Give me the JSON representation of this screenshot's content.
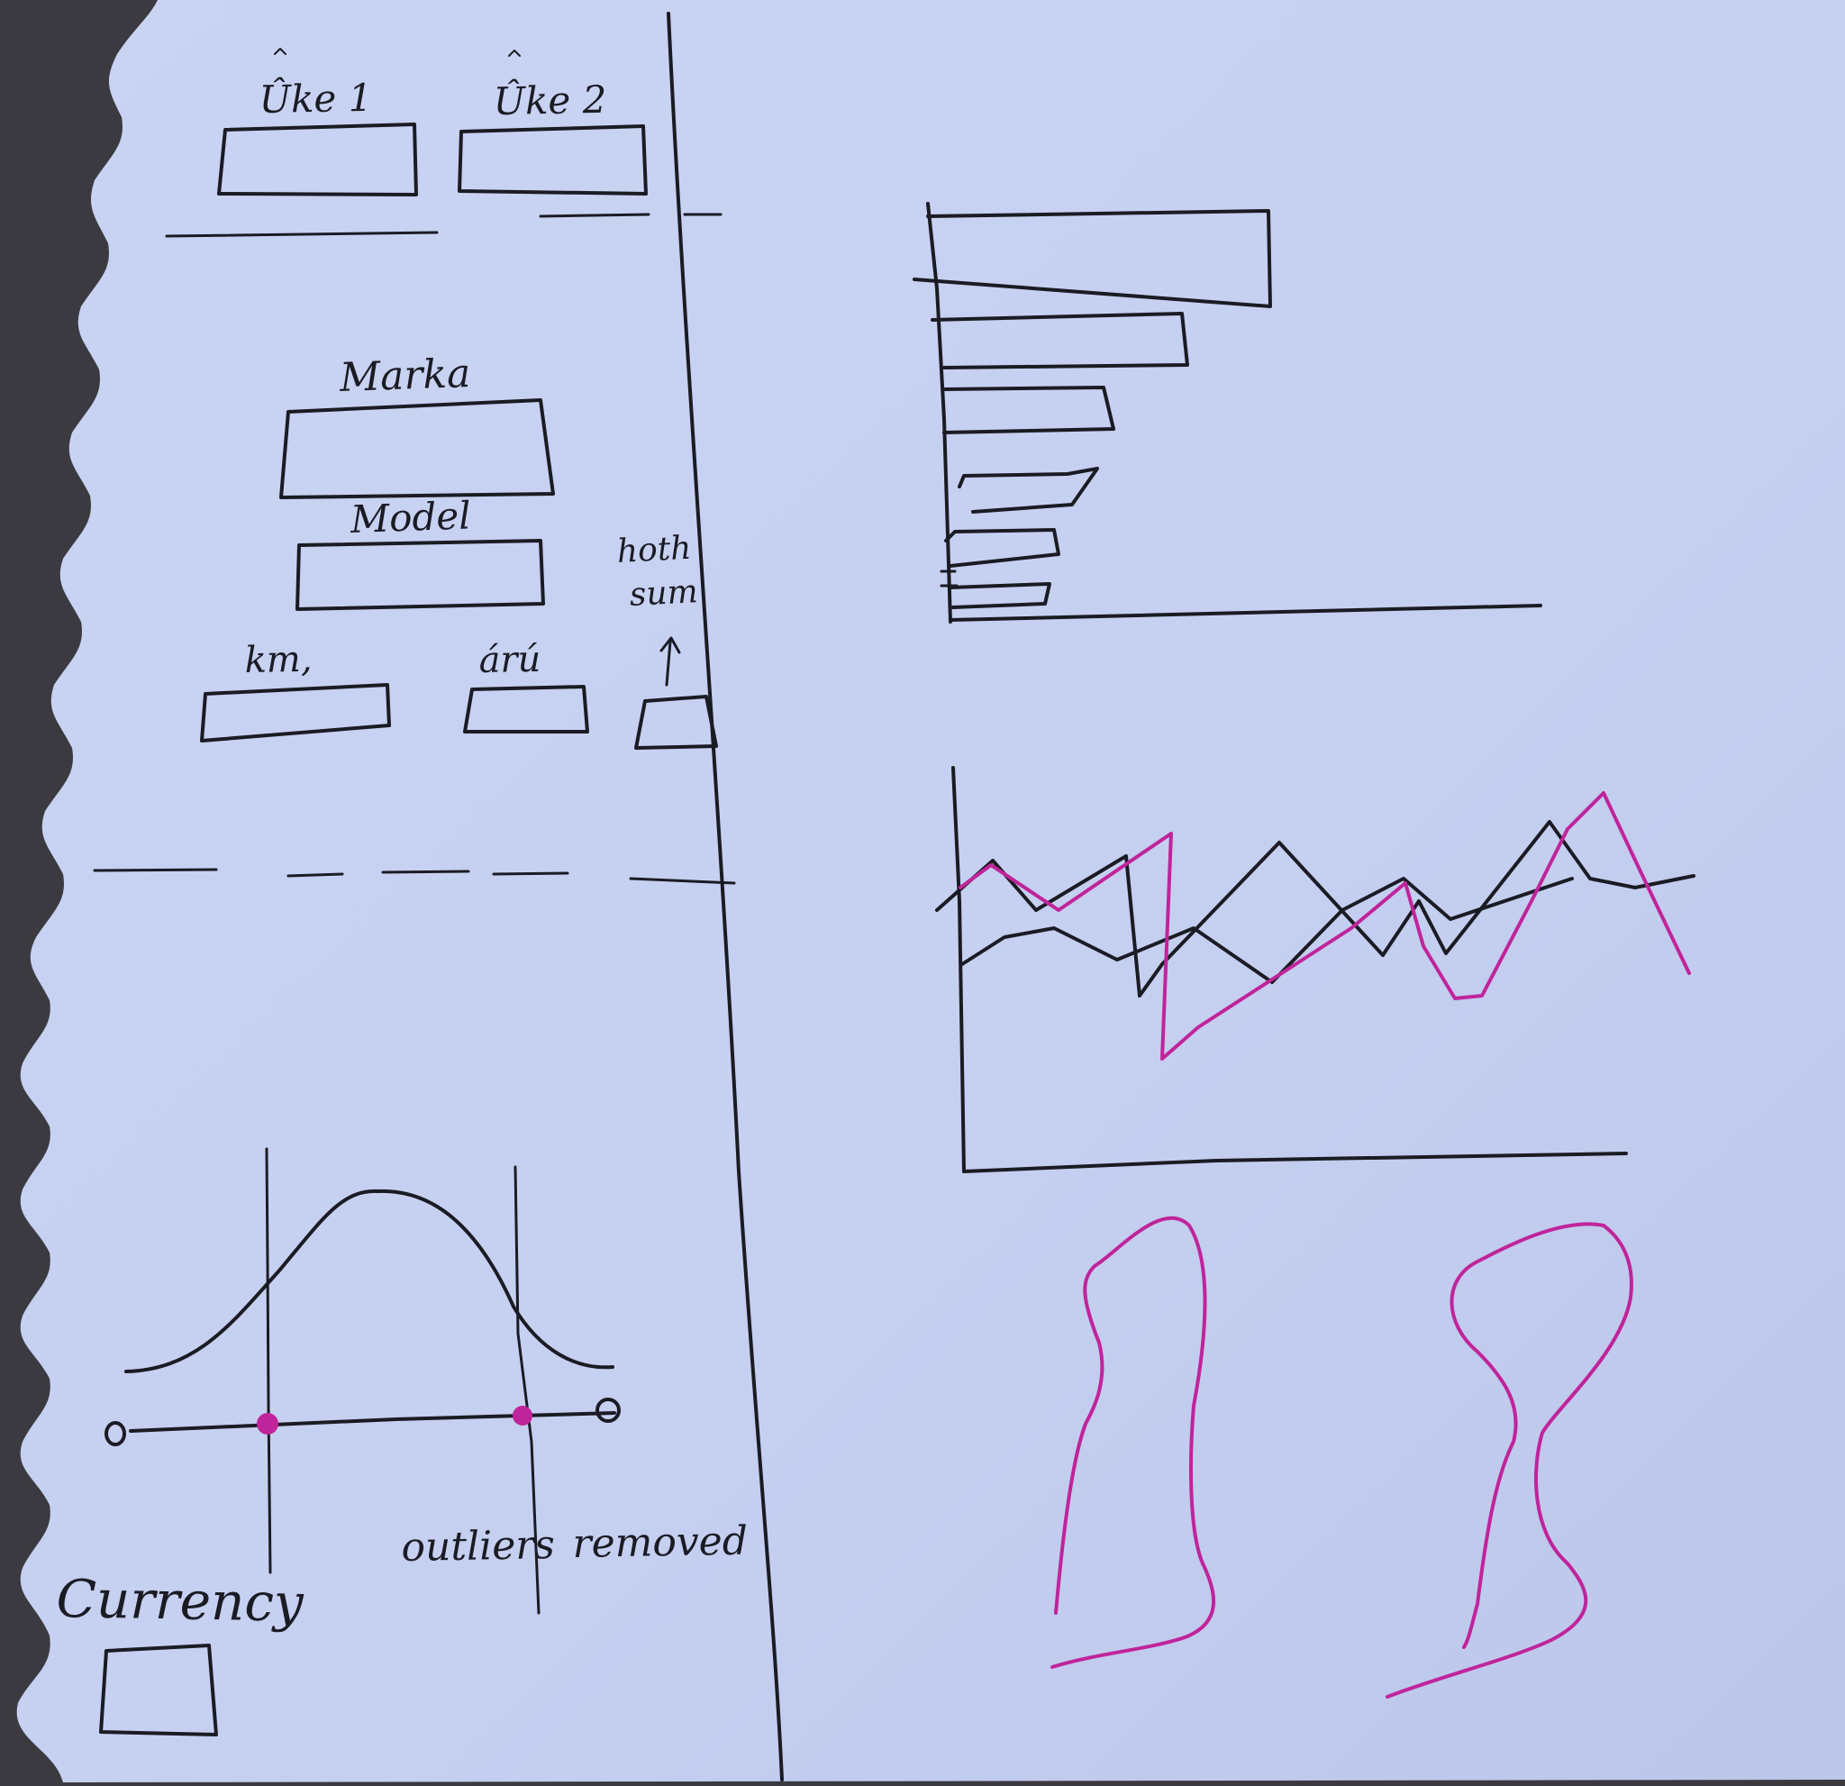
{
  "sketch": {
    "filters": {
      "week1_label": "Ûke 1",
      "week2_label": "Ûke 2",
      "marka_label": "Marka",
      "model_label": "Model",
      "km_label": "km,",
      "aru_label": "árú",
      "hoth_sum_label": "hoth",
      "hoth_sum_label2": "sum"
    },
    "slider": {
      "outliers_label": "outliers",
      "removed_label": "removed"
    },
    "currency": {
      "label": "Currency"
    },
    "colors": {
      "paper": "#c7d1f1",
      "ink": "#1b1b24",
      "magenta": "#c0249a",
      "background": "#3a3a40"
    }
  }
}
